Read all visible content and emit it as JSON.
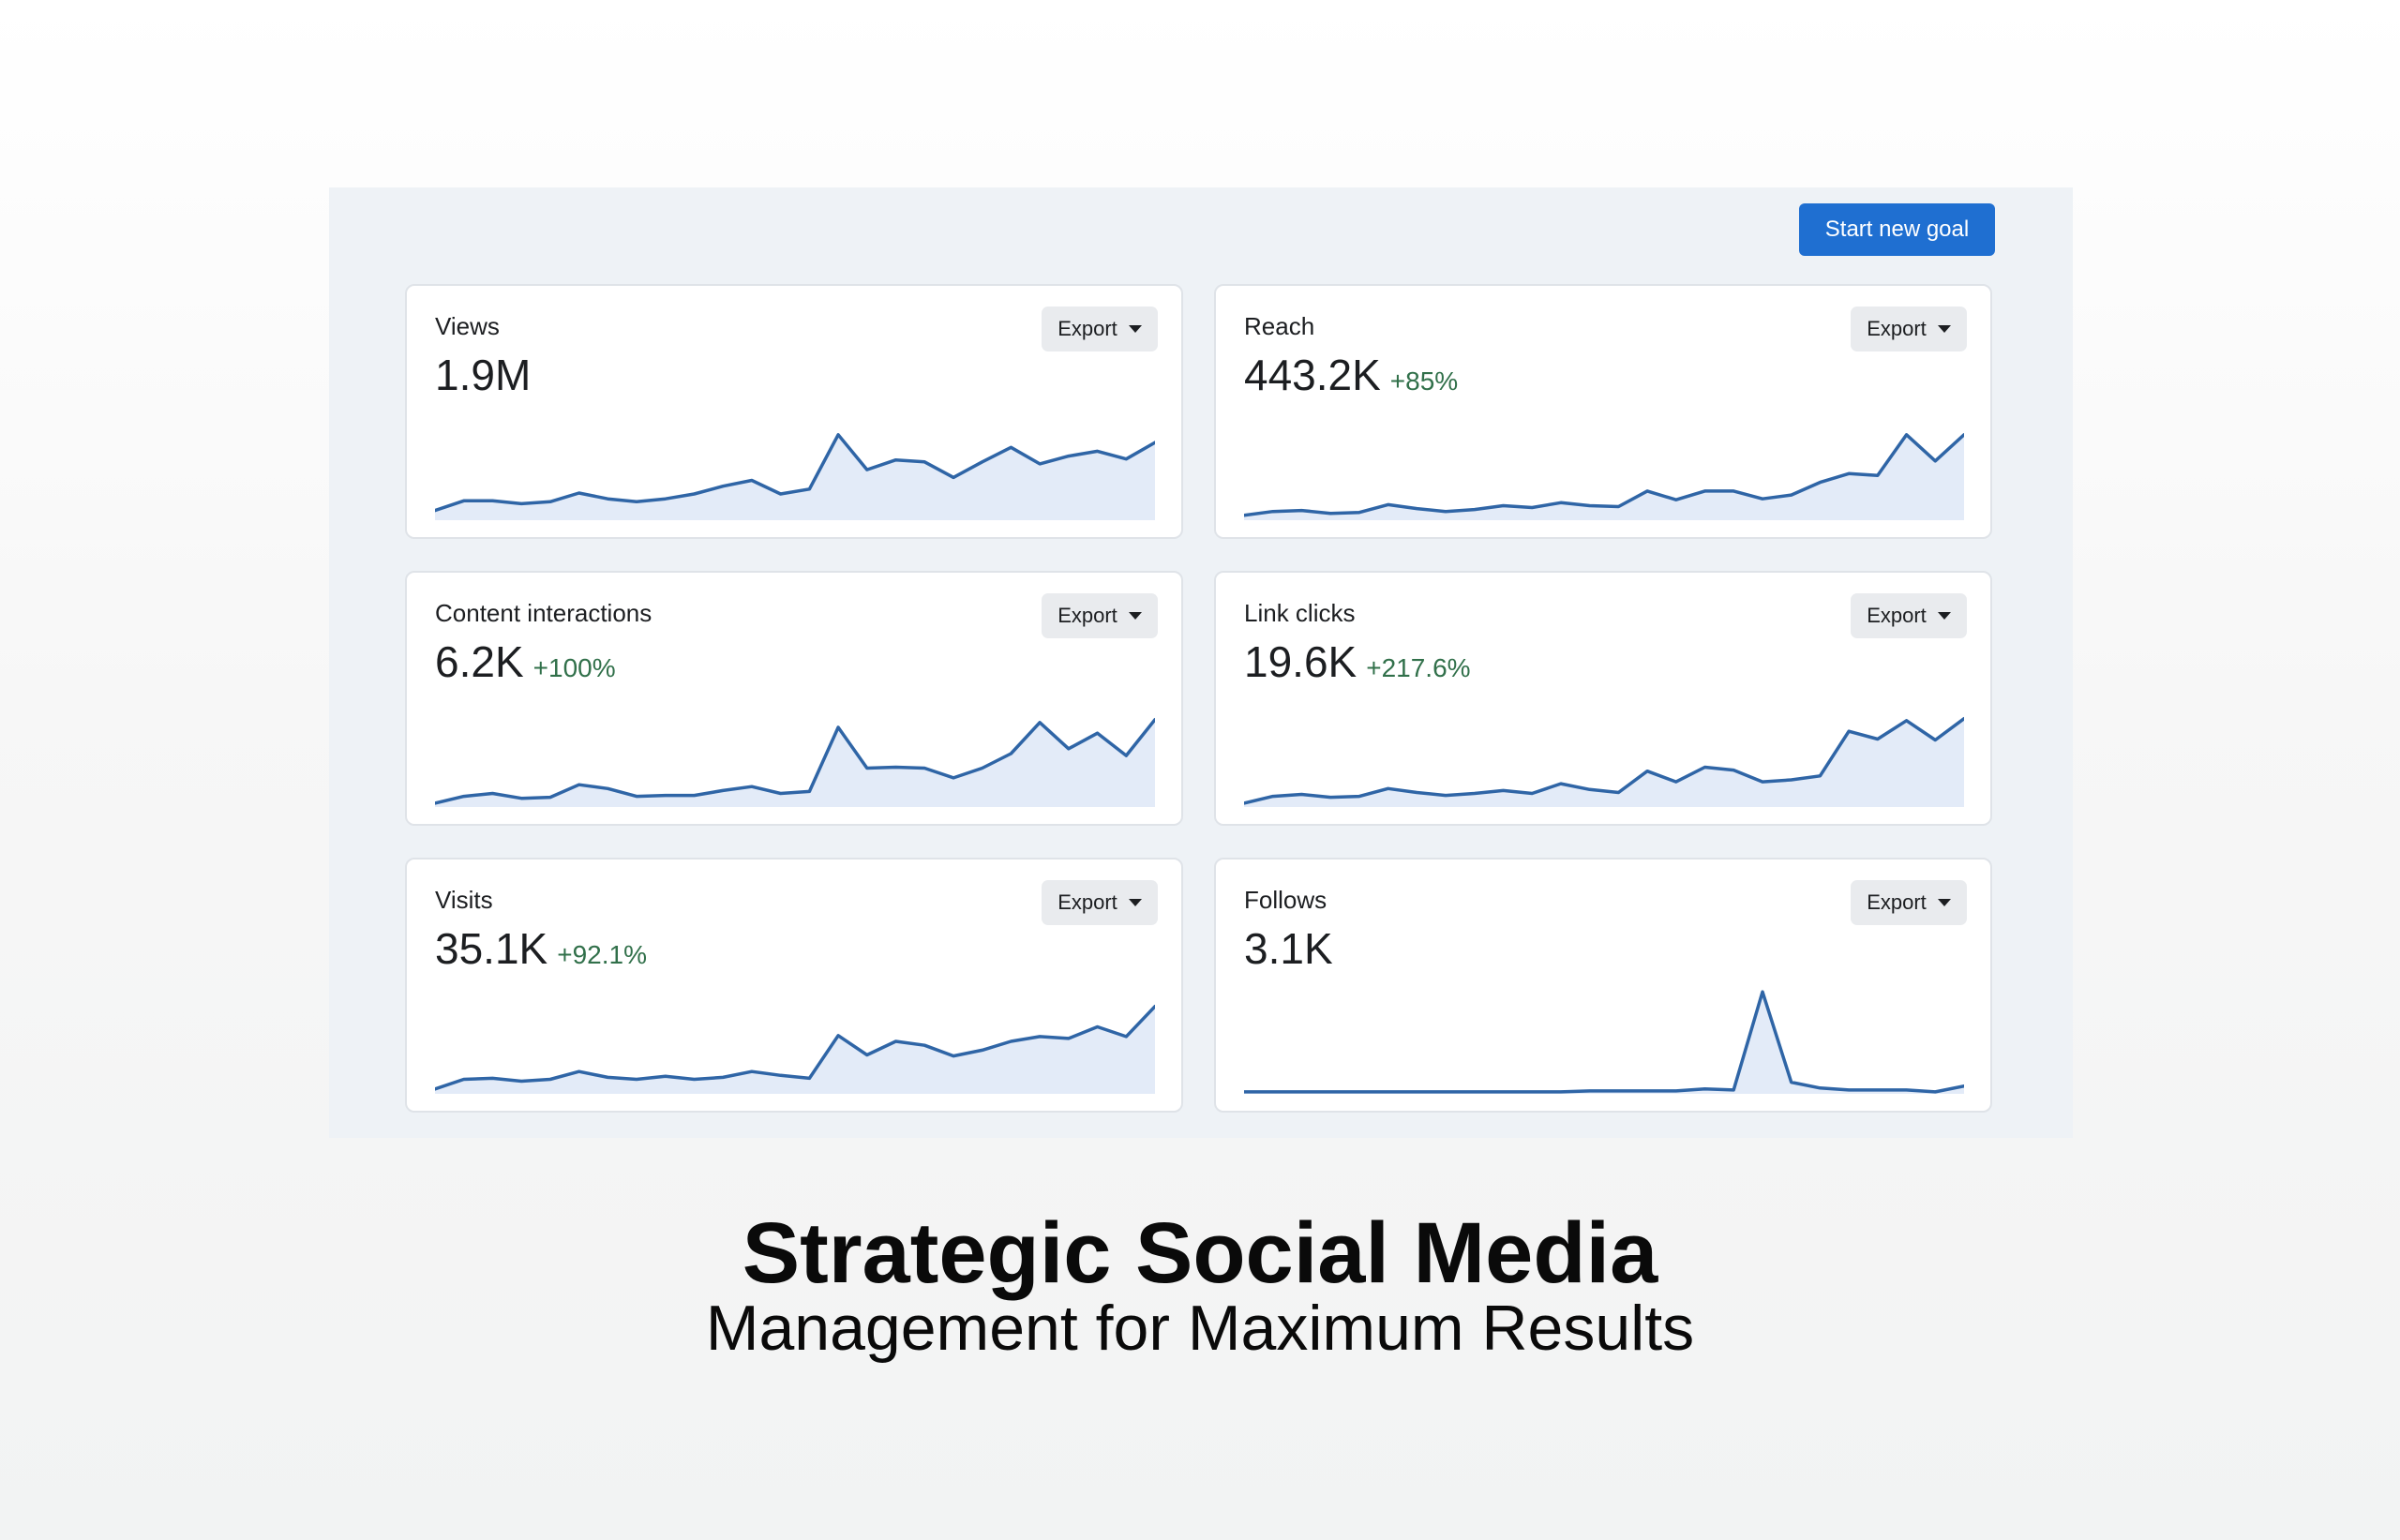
{
  "header": {
    "start_goal_label": "Start new goal"
  },
  "cards": [
    {
      "title": "Views",
      "value": "1.9M",
      "change": "",
      "export_label": "Export",
      "series": [
        10,
        20,
        20,
        17,
        19,
        28,
        22,
        19,
        22,
        27,
        35,
        41,
        27,
        32,
        88,
        52,
        62,
        60,
        44,
        60,
        75,
        58,
        66,
        71,
        63,
        80
      ]
    },
    {
      "title": "Reach",
      "value": "443.2K",
      "change": "+85%",
      "export_label": "Export",
      "series": [
        5,
        9,
        10,
        7,
        8,
        16,
        12,
        9,
        11,
        15,
        13,
        18,
        15,
        14,
        30,
        21,
        30,
        30,
        22,
        26,
        39,
        48,
        46,
        88,
        61,
        88
      ]
    },
    {
      "title": "Content interactions",
      "value": "6.2K",
      "change": "+100%",
      "export_label": "Export",
      "series": [
        4,
        11,
        14,
        9,
        10,
        23,
        19,
        11,
        12,
        12,
        17,
        21,
        14,
        16,
        82,
        40,
        41,
        40,
        30,
        40,
        55,
        87,
        60,
        76,
        53,
        90
      ]
    },
    {
      "title": "Link clicks",
      "value": "19.6K",
      "change": "+217.6%",
      "export_label": "Export",
      "series": [
        4,
        11,
        13,
        10,
        11,
        19,
        15,
        12,
        14,
        17,
        14,
        24,
        18,
        15,
        37,
        26,
        41,
        38,
        26,
        28,
        32,
        78,
        70,
        89,
        69,
        91
      ]
    },
    {
      "title": "Visits",
      "value": "35.1K",
      "change": "+92.1%",
      "export_label": "Export",
      "series": [
        5,
        15,
        16,
        13,
        15,
        23,
        17,
        15,
        18,
        15,
        17,
        23,
        19,
        16,
        60,
        40,
        54,
        50,
        39,
        45,
        54,
        59,
        57,
        69,
        59,
        90
      ]
    },
    {
      "title": "Follows",
      "value": "3.1K",
      "change": "",
      "export_label": "Export",
      "series": [
        2,
        2,
        2,
        2,
        2,
        2,
        2,
        2,
        2,
        2,
        2,
        2,
        3,
        3,
        3,
        3,
        5,
        4,
        105,
        12,
        6,
        4,
        4,
        4,
        2,
        8
      ]
    }
  ],
  "headline": "Strategic Social Media",
  "subheadline": "Management for Maximum Results",
  "colors": {
    "accent": "#1f6fd1",
    "line": "#2f65a6",
    "area": "#e3ebf8",
    "positive": "#31704a"
  }
}
